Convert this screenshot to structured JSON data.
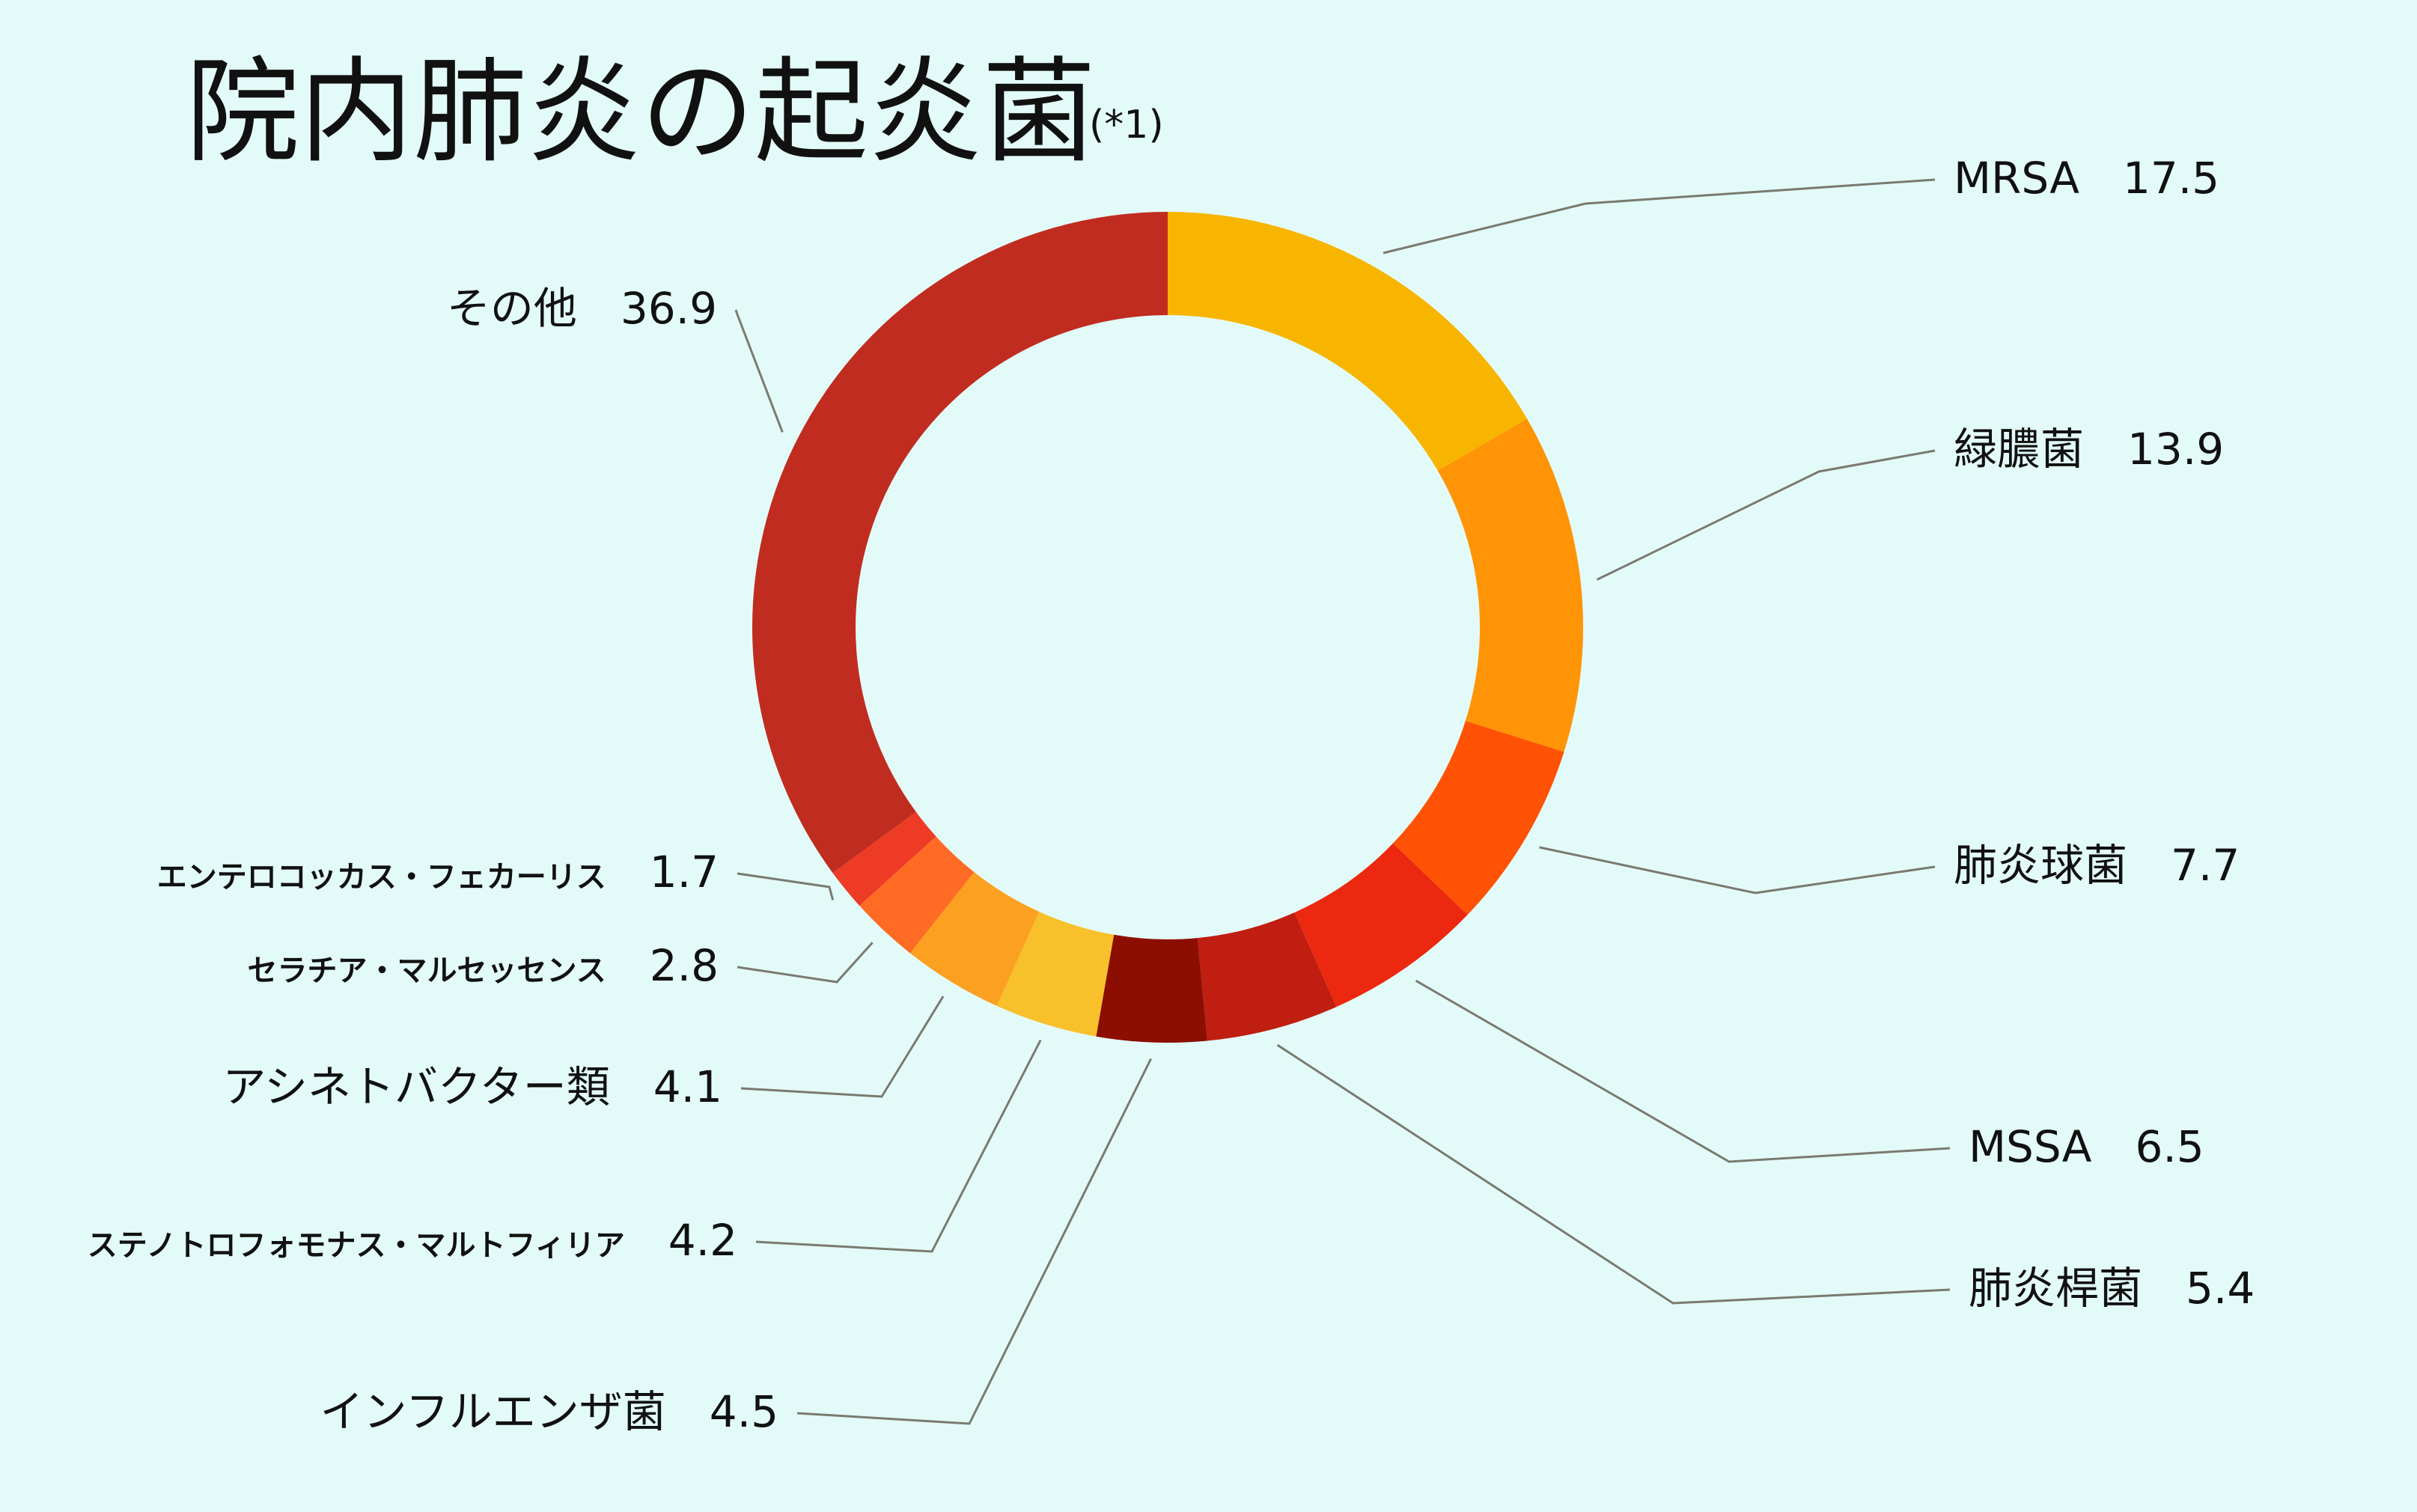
{
  "chart_data": {
    "type": "pie",
    "title": "院内肺炎の起炎菌",
    "title_note": "(*1)",
    "donut": true,
    "slices": [
      {
        "label": "MRSA",
        "value": 17.5,
        "color": "#f7b500"
      },
      {
        "label": "緑膿菌",
        "value": 13.9,
        "color": "#ff9406"
      },
      {
        "label": "肺炎球菌",
        "value": 7.7,
        "color": "#ff5205"
      },
      {
        "label": "MSSA",
        "value": 6.5,
        "color": "#ec2810"
      },
      {
        "label": "肺炎桿菌",
        "value": 5.4,
        "color": "#bf1e10"
      },
      {
        "label": "インフルエンザ菌",
        "value": 4.5,
        "color": "#8c0e00"
      },
      {
        "label": "ステノトロフォモナス・マルトフィリア",
        "value": 4.2,
        "color": "#f8c02b"
      },
      {
        "label": "アシネトバクター類",
        "value": 4.1,
        "color": "#fca022"
      },
      {
        "label": "セラチア・マルセッセンス",
        "value": 2.8,
        "color": "#ff6a25"
      },
      {
        "label": "エンテロコッカス・フェカーリス",
        "value": 1.7,
        "color": "#ee3b26"
      },
      {
        "label": "その他",
        "value": 36.9,
        "color": "#c12c20"
      }
    ]
  }
}
